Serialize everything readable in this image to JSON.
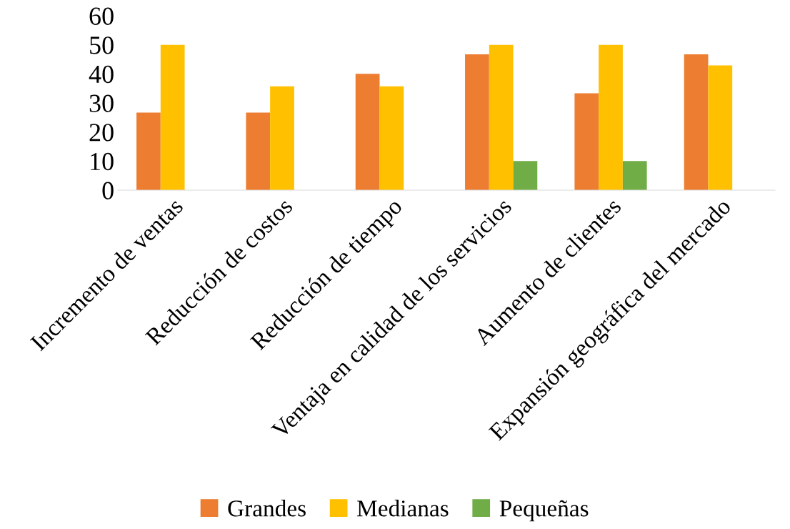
{
  "chart_data": {
    "type": "bar",
    "categories": [
      "Incremento de ventas",
      "Reducción de costos",
      "Reducción de tiempo",
      "Ventaja en calidad de los servicios",
      "Aumento de clientes",
      "Expansión geográfica del mercado"
    ],
    "series": [
      {
        "name": "Grandes",
        "color": "#ed7d31",
        "values": [
          26.7,
          26.7,
          40,
          46.7,
          33.3,
          46.7
        ]
      },
      {
        "name": "Medianas",
        "color": "#ffc000",
        "values": [
          50,
          35.7,
          35.7,
          50,
          50,
          42.9
        ]
      },
      {
        "name": "Pequeñas",
        "color": "#70ad47",
        "values": [
          null,
          null,
          null,
          10,
          10,
          null
        ]
      }
    ],
    "ylim": [
      0,
      60
    ],
    "yticks": [
      0,
      10,
      20,
      30,
      40,
      50,
      60
    ],
    "grid": false,
    "legend": "bottom"
  }
}
